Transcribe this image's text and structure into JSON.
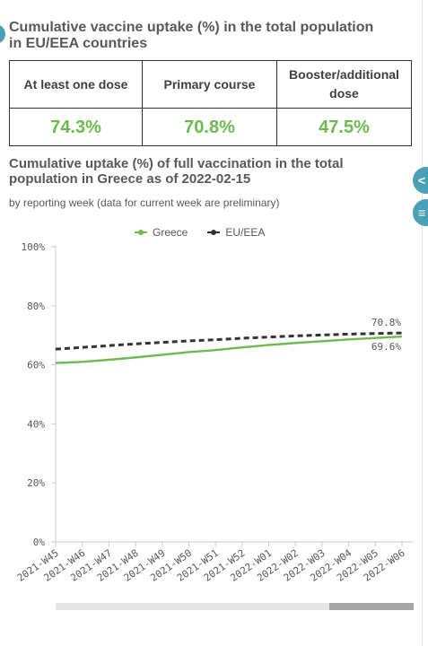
{
  "colors": {
    "greece": "#6dbb4f",
    "eu": "#333333",
    "kpi_value": "#6dbb4f",
    "side_button": "#4aa0b5",
    "axis_text": "#595959",
    "grid": "#e6e6e6"
  },
  "kpi": {
    "title": "Cumulative vaccine uptake (%) in the total population in EU/EEA countries",
    "headers": [
      "At least one dose",
      "Primary course",
      "Booster/additional dose"
    ],
    "values": [
      "74.3%",
      "70.8%",
      "47.5%"
    ]
  },
  "side_buttons": [
    {
      "icon": "share-icon",
      "glyph": "<"
    },
    {
      "icon": "menu-icon",
      "glyph": "≡"
    }
  ],
  "chart_data": {
    "type": "line",
    "title": "Cumulative uptake (%) of full vaccination in the total population in Greece as of 2022-02-15",
    "subtitle": "by reporting week (data for current week are preliminary)",
    "xlabel": "",
    "ylabel": "",
    "ylim": [
      0,
      100
    ],
    "yticks": [
      0,
      20,
      40,
      60,
      80,
      100
    ],
    "ytick_labels": [
      "0%",
      "20%",
      "40%",
      "60%",
      "80%",
      "100%"
    ],
    "grid": false,
    "legend_position": "top",
    "categories": [
      "2021-W45",
      "2021-W46",
      "2021-W47",
      "2021-W48",
      "2021-W49",
      "2021-W50",
      "2021-W51",
      "2021-W52",
      "2022-W01",
      "2022-W02",
      "2022-W03",
      "2022-W04",
      "2022-W05",
      "2022-W06"
    ],
    "series": [
      {
        "name": "Greece",
        "style": "solid",
        "values": [
          60.6,
          61.0,
          61.7,
          62.5,
          63.4,
          64.3,
          65.0,
          65.9,
          66.7,
          67.4,
          68.0,
          68.6,
          69.1,
          69.6
        ],
        "end_label": "69.6%"
      },
      {
        "name": "EU/EEA",
        "style": "dashed",
        "values": [
          65.3,
          65.9,
          66.5,
          67.1,
          67.6,
          68.1,
          68.5,
          69.0,
          69.4,
          69.8,
          70.1,
          70.4,
          70.6,
          70.8
        ],
        "end_label": "70.8%"
      }
    ]
  }
}
